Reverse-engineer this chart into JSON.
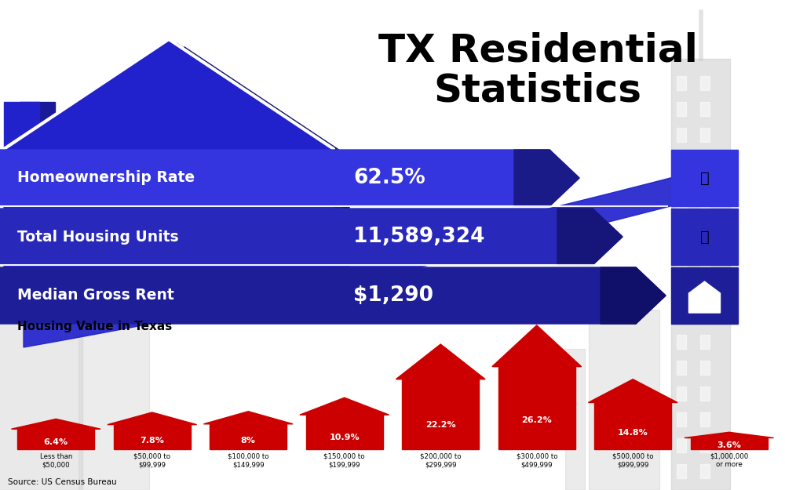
{
  "title": "TX Residential\nStatistics",
  "title_fontsize": 36,
  "bg_color": "#ffffff",
  "blue_dark": "#1a1a8c",
  "blue_mid": "#2929cc",
  "blue_banner1": "#3333dd",
  "blue_banner2": "#2929bb",
  "blue_banner3": "#2020a0",
  "red_bar": "#cc0000",
  "stats": [
    {
      "label": "Homeownership Rate",
      "value": "62.5%"
    },
    {
      "label": "Total Housing Units",
      "value": "11,589,324"
    },
    {
      "label": "Median Gross Rent",
      "value": "$1,290"
    }
  ],
  "bar_section_title": "Housing Value in Texas",
  "bar_percentages": [
    6.4,
    7.8,
    8.0,
    10.9,
    22.2,
    26.2,
    14.8,
    3.6
  ],
  "bar_labels": [
    "Less than\n$50,000",
    "$50,000 to\n$99,999",
    "$100,000 to\n$149,999",
    "$150,000 to\n$199,999",
    "$200,000 to\n$299,999",
    "$300,000 to\n$499,999",
    "$500,000 to\n$999,999",
    "$1,000,000\nor more"
  ],
  "source_text": "Source: US Census Bureau"
}
